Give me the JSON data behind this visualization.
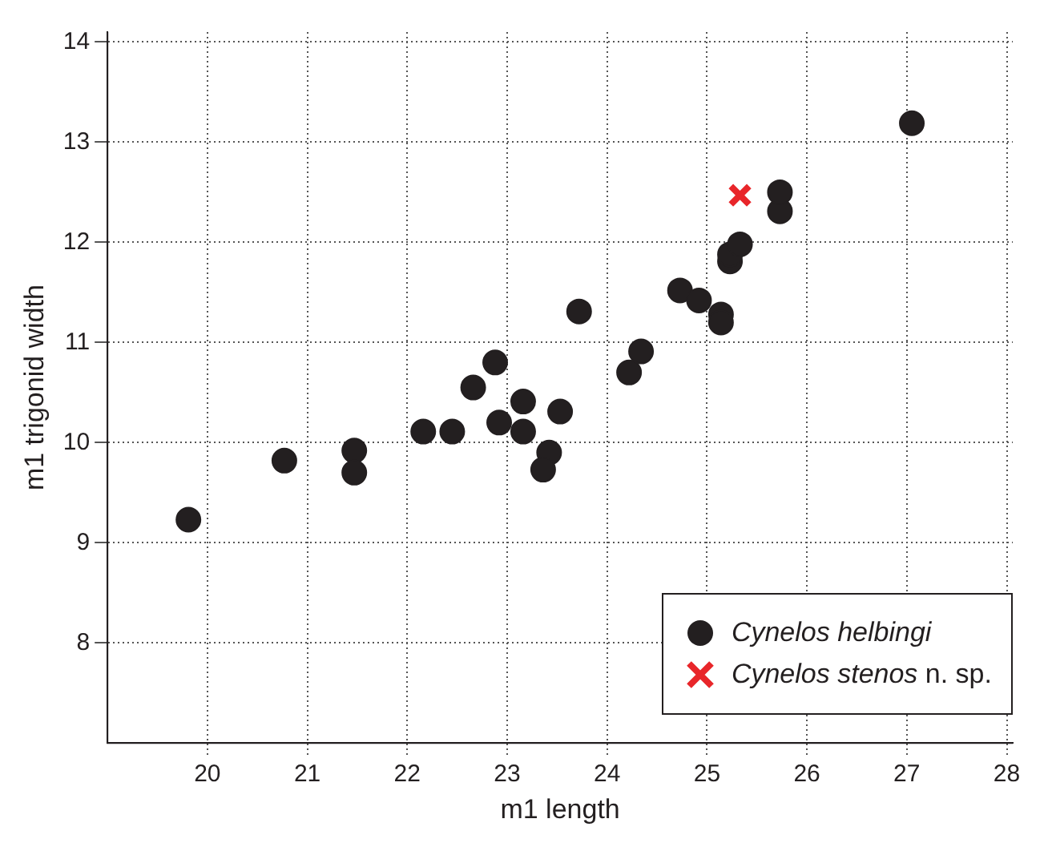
{
  "chart_data": {
    "type": "scatter",
    "xlabel": "m1 length",
    "ylabel": "m1 trigonid width",
    "xlim": [
      19,
      28.06
    ],
    "ylim": [
      7,
      14.1
    ],
    "xticks": [
      20,
      21,
      22,
      23,
      24,
      25,
      26,
      27,
      28
    ],
    "yticks": [
      8,
      9,
      10,
      11,
      12,
      13,
      14
    ],
    "grid": true,
    "legend": "bottom right",
    "series": [
      {
        "name": "Cynelos helbingi",
        "color": "#231f20",
        "marker": "circle",
        "x": [
          19.81,
          20.77,
          21.47,
          21.47,
          22.16,
          22.45,
          22.66,
          22.88,
          22.92,
          23.16,
          23.16,
          23.42,
          23.36,
          23.53,
          23.72,
          24.22,
          24.34,
          24.73,
          24.92,
          25.14,
          25.14,
          25.23,
          25.23,
          25.33,
          25.73,
          25.73,
          27.05
        ],
        "values": [
          9.23,
          9.82,
          9.92,
          9.7,
          10.11,
          10.11,
          10.55,
          10.8,
          10.2,
          10.41,
          10.11,
          9.9,
          9.73,
          10.31,
          11.31,
          10.7,
          10.91,
          11.52,
          11.42,
          11.28,
          11.2,
          11.81,
          11.88,
          11.98,
          12.31,
          12.5,
          13.19
        ]
      },
      {
        "name": "Cynelos stenos n. sp.",
        "color": "#e8262a",
        "marker": "cross",
        "x": [
          25.33
        ],
        "values": [
          12.47
        ]
      }
    ]
  }
}
